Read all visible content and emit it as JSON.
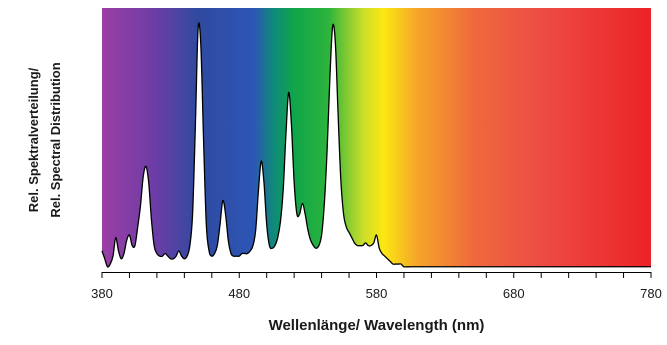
{
  "chart_data": {
    "type": "area",
    "title": "",
    "xlabel": "Wellenlänge/ Wavelength (nm)",
    "ylabel_lines": [
      "Rel. Spektralverteilung/",
      "Rel. Spectral Distribution"
    ],
    "xlim": [
      380,
      780
    ],
    "ylim": [
      0,
      1
    ],
    "x_ticks": [
      380,
      480,
      580,
      680,
      780
    ],
    "x_tick_labels": [
      "380",
      "480",
      "580",
      "680",
      "780"
    ],
    "minor_tick_step": 20,
    "y_ticks_shown": false,
    "grid": false,
    "legend": "none",
    "background": "visible spectrum gradient (violet to red)",
    "fill_below_curve": "#ffffff",
    "curve_color": "#000000",
    "spectrum_stops": [
      {
        "nm": 380,
        "color": "#9b3fa4"
      },
      {
        "nm": 420,
        "color": "#6a3da6"
      },
      {
        "nm": 450,
        "color": "#2f4aa0"
      },
      {
        "nm": 490,
        "color": "#2d55b5"
      },
      {
        "nm": 505,
        "color": "#0f8a7a"
      },
      {
        "nm": 520,
        "color": "#10a54a"
      },
      {
        "nm": 545,
        "color": "#2db43c"
      },
      {
        "nm": 570,
        "color": "#c9dd2a"
      },
      {
        "nm": 585,
        "color": "#fbe812"
      },
      {
        "nm": 610,
        "color": "#f5a52a"
      },
      {
        "nm": 650,
        "color": "#ef6a3c"
      },
      {
        "nm": 700,
        "color": "#ed4c45"
      },
      {
        "nm": 780,
        "color": "#ec2326"
      }
    ],
    "series": [
      {
        "x": [
          380,
          382,
          384,
          386,
          388,
          390,
          392,
          394,
          396,
          398,
          400,
          402,
          404,
          406,
          408,
          410,
          412,
          414,
          416,
          418,
          420,
          422,
          424,
          426,
          428,
          430,
          432,
          434,
          436,
          438,
          440,
          442,
          444,
          446,
          448,
          450,
          452,
          454,
          456,
          458,
          460,
          462,
          464,
          466,
          468,
          470,
          472,
          474,
          476,
          478,
          480,
          482,
          484,
          486,
          488,
          490,
          492,
          494,
          496,
          498,
          500,
          502,
          504,
          506,
          508,
          510,
          512,
          514,
          516,
          518,
          520,
          522,
          524,
          526,
          528,
          530,
          532,
          534,
          536,
          538,
          540,
          542,
          544,
          546,
          548,
          550,
          552,
          554,
          556,
          558,
          560,
          562,
          564,
          566,
          568,
          570,
          572,
          574,
          576,
          578,
          580,
          582,
          584,
          586,
          588,
          590,
          592,
          594,
          596,
          598,
          600,
          605,
          610,
          615,
          620,
          625,
          630,
          635,
          640,
          645,
          650,
          655,
          660,
          665,
          668,
          670,
          672,
          674,
          676,
          680,
          685,
          690,
          695,
          700,
          710,
          720,
          730,
          740,
          750,
          760,
          770,
          780
        ],
        "y": [
          0.08,
          0.05,
          0.02,
          0.03,
          0.06,
          0.13,
          0.08,
          0.05,
          0.07,
          0.12,
          0.14,
          0.1,
          0.1,
          0.17,
          0.25,
          0.36,
          0.4,
          0.34,
          0.2,
          0.1,
          0.07,
          0.06,
          0.06,
          0.07,
          0.06,
          0.05,
          0.05,
          0.06,
          0.08,
          0.06,
          0.05,
          0.06,
          0.1,
          0.22,
          0.55,
          0.92,
          0.86,
          0.5,
          0.18,
          0.08,
          0.06,
          0.07,
          0.1,
          0.18,
          0.27,
          0.22,
          0.12,
          0.07,
          0.06,
          0.06,
          0.06,
          0.07,
          0.07,
          0.07,
          0.08,
          0.1,
          0.16,
          0.31,
          0.42,
          0.34,
          0.18,
          0.1,
          0.09,
          0.1,
          0.13,
          0.19,
          0.31,
          0.52,
          0.68,
          0.56,
          0.34,
          0.22,
          0.22,
          0.26,
          0.22,
          0.16,
          0.12,
          0.1,
          0.09,
          0.1,
          0.14,
          0.26,
          0.46,
          0.73,
          0.93,
          0.87,
          0.6,
          0.35,
          0.22,
          0.17,
          0.15,
          0.13,
          0.11,
          0.1,
          0.1,
          0.1,
          0.11,
          0.1,
          0.1,
          0.11,
          0.14,
          0.09,
          0.07,
          0.06,
          0.05,
          0.04,
          0.03,
          0.03,
          0.03,
          0.03,
          0.02,
          0.02,
          0.02,
          0.02,
          0.02,
          0.02,
          0.02,
          0.02,
          0.02,
          0.02,
          0.02,
          0.02,
          0.02,
          0.02,
          0.02,
          0.02,
          0.02,
          0.02,
          0.02,
          0.02,
          0.02,
          0.02,
          0.02,
          0.02,
          0.02,
          0.02,
          0.02,
          0.02,
          0.02,
          0.02,
          0.02,
          0.02
        ]
      }
    ]
  }
}
